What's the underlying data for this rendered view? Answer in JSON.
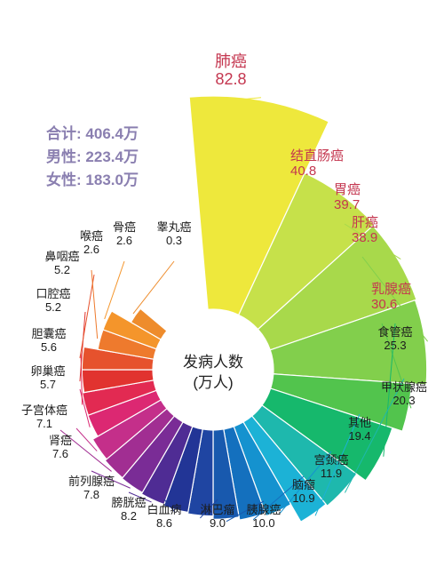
{
  "center": {
    "line1": "发病人数",
    "line2": "(万人)"
  },
  "stats": [
    {
      "label": "合计:",
      "value": "406.4万"
    },
    {
      "label": "男性:",
      "value": "223.4万"
    },
    {
      "label": "女性:",
      "value": "183.0万"
    }
  ],
  "highlight_color": "#c4364f",
  "chart_data": {
    "type": "radial-bar",
    "title": "",
    "unit": "万人",
    "categories": [
      "肺癌",
      "结直肠癌",
      "胃癌",
      "肝癌",
      "乳腺癌",
      "食管癌",
      "甲状腺癌",
      "其他",
      "宫颈癌",
      "脑瘤",
      "胰腺癌",
      "淋巴瘤",
      "白血病",
      "膀胱癌",
      "前列腺癌",
      "肾癌",
      "子宫体癌",
      "卵巢癌",
      "胆囊癌",
      "口腔癌",
      "鼻咽癌",
      "喉癌",
      "骨癌",
      "睾丸癌"
    ],
    "values": [
      82.8,
      40.8,
      39.7,
      38.9,
      30.6,
      25.3,
      20.3,
      19.4,
      11.9,
      10.9,
      10.0,
      9.0,
      8.6,
      8.2,
      7.8,
      7.6,
      7.1,
      5.7,
      5.6,
      5.2,
      5.2,
      2.6,
      2.6,
      0.3
    ],
    "colors": [
      "#eee83c",
      "#c6e14a",
      "#a8d94b",
      "#82cf4c",
      "#52c44d",
      "#16b86c",
      "#1eb8ad",
      "#1cb2d6",
      "#1592cf",
      "#1470be",
      "#1859ae",
      "#1f45a2",
      "#223596",
      "#4f2c94",
      "#7a2c96",
      "#a12e92",
      "#c42f8a",
      "#dc2872",
      "#e22a52",
      "#e1332f",
      "#e6522d",
      "#ee7a2d",
      "#f4952b",
      "#ee8c2c"
    ],
    "label_style": [
      "red-huge",
      "red-big",
      "red-big",
      "red-big",
      "red-big",
      "dark",
      "dark",
      "dark",
      "dark",
      "dark",
      "dark",
      "dark",
      "dark",
      "dark",
      "dark",
      "dark",
      "dark",
      "dark",
      "dark",
      "dark",
      "dark",
      "dark",
      "dark",
      "dark"
    ]
  }
}
